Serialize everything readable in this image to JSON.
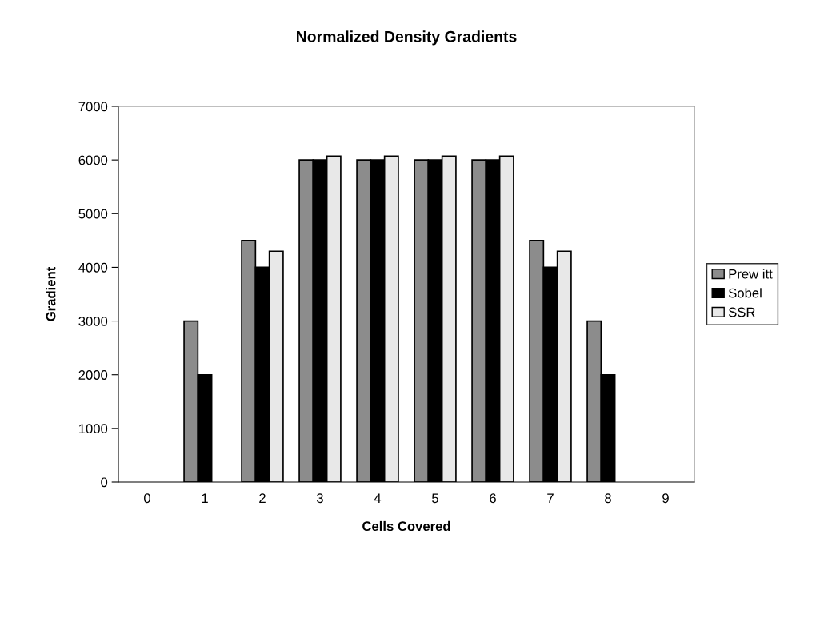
{
  "chart_data": {
    "type": "bar",
    "title": "Normalized Density Gradients",
    "xlabel": "Cells Covered",
    "ylabel": "Gradient",
    "categories": [
      "0",
      "1",
      "2",
      "3",
      "4",
      "5",
      "6",
      "7",
      "8",
      "9"
    ],
    "series": [
      {
        "name": "Prew itt",
        "color": "#8c8c8c",
        "values": [
          null,
          3000,
          4500,
          6000,
          6000,
          6000,
          6000,
          4500,
          3000,
          null
        ]
      },
      {
        "name": "Sobel",
        "color": "#000000",
        "values": [
          null,
          2000,
          4000,
          6000,
          6000,
          6000,
          6000,
          4000,
          2000,
          null
        ]
      },
      {
        "name": "SSR",
        "color": "#e8e8e8",
        "values": [
          null,
          null,
          4300,
          6070,
          6070,
          6070,
          6070,
          4300,
          null,
          null
        ]
      }
    ],
    "ylim": [
      0,
      7000
    ],
    "yticks": [
      0,
      1000,
      2000,
      3000,
      4000,
      5000,
      6000,
      7000
    ],
    "grid": false,
    "legend": "right"
  }
}
